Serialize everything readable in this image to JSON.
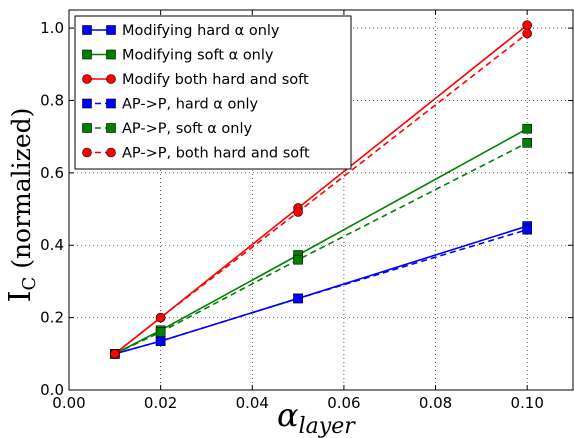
{
  "chart_data": {
    "type": "line",
    "xlabel": "α",
    "xlabel_sub": "layer",
    "ylabel": "I",
    "ylabel_sub": "C",
    "ylabel_suffix": " (normalized)",
    "xlim": [
      0.0,
      0.11
    ],
    "ylim": [
      0.0,
      1.05
    ],
    "xticks": [
      0.0,
      0.02,
      0.04,
      0.06,
      0.08,
      0.1
    ],
    "xtick_labels": [
      "0.00",
      "0.02",
      "0.04",
      "0.06",
      "0.08",
      "0.10"
    ],
    "yticks": [
      0.0,
      0.2,
      0.4,
      0.6,
      0.8,
      1.0
    ],
    "ytick_labels": [
      "0.0",
      "0.2",
      "0.4",
      "0.6",
      "0.8",
      "1.0"
    ],
    "grid": true,
    "legend_position": "top-left",
    "x": [
      0.01,
      0.02,
      0.05,
      0.1
    ],
    "series": [
      {
        "name": "Modifying hard α only",
        "values": [
          0.1,
          0.135,
          0.253,
          0.453
        ],
        "color": "#0000ff",
        "marker": "square",
        "line": "solid"
      },
      {
        "name": "Modifying soft α only",
        "values": [
          0.1,
          0.165,
          0.373,
          0.722
        ],
        "color": "#008000",
        "marker": "square",
        "line": "solid"
      },
      {
        "name": "Modify both hard and soft",
        "values": [
          0.1,
          0.2,
          0.503,
          1.008
        ],
        "color": "#ff0000",
        "marker": "circle",
        "line": "solid"
      },
      {
        "name": "AP->P, hard α only",
        "values": [
          0.1,
          0.135,
          0.253,
          0.443
        ],
        "color": "#0000ff",
        "marker": "square",
        "line": "dashed"
      },
      {
        "name": "AP->P, soft α only",
        "values": [
          0.1,
          0.16,
          0.36,
          0.683
        ],
        "color": "#008000",
        "marker": "square",
        "line": "dashed"
      },
      {
        "name": "AP->P, both hard and soft",
        "values": [
          0.1,
          0.2,
          0.492,
          0.985
        ],
        "color": "#ff0000",
        "marker": "circle",
        "line": "dashed"
      }
    ]
  }
}
